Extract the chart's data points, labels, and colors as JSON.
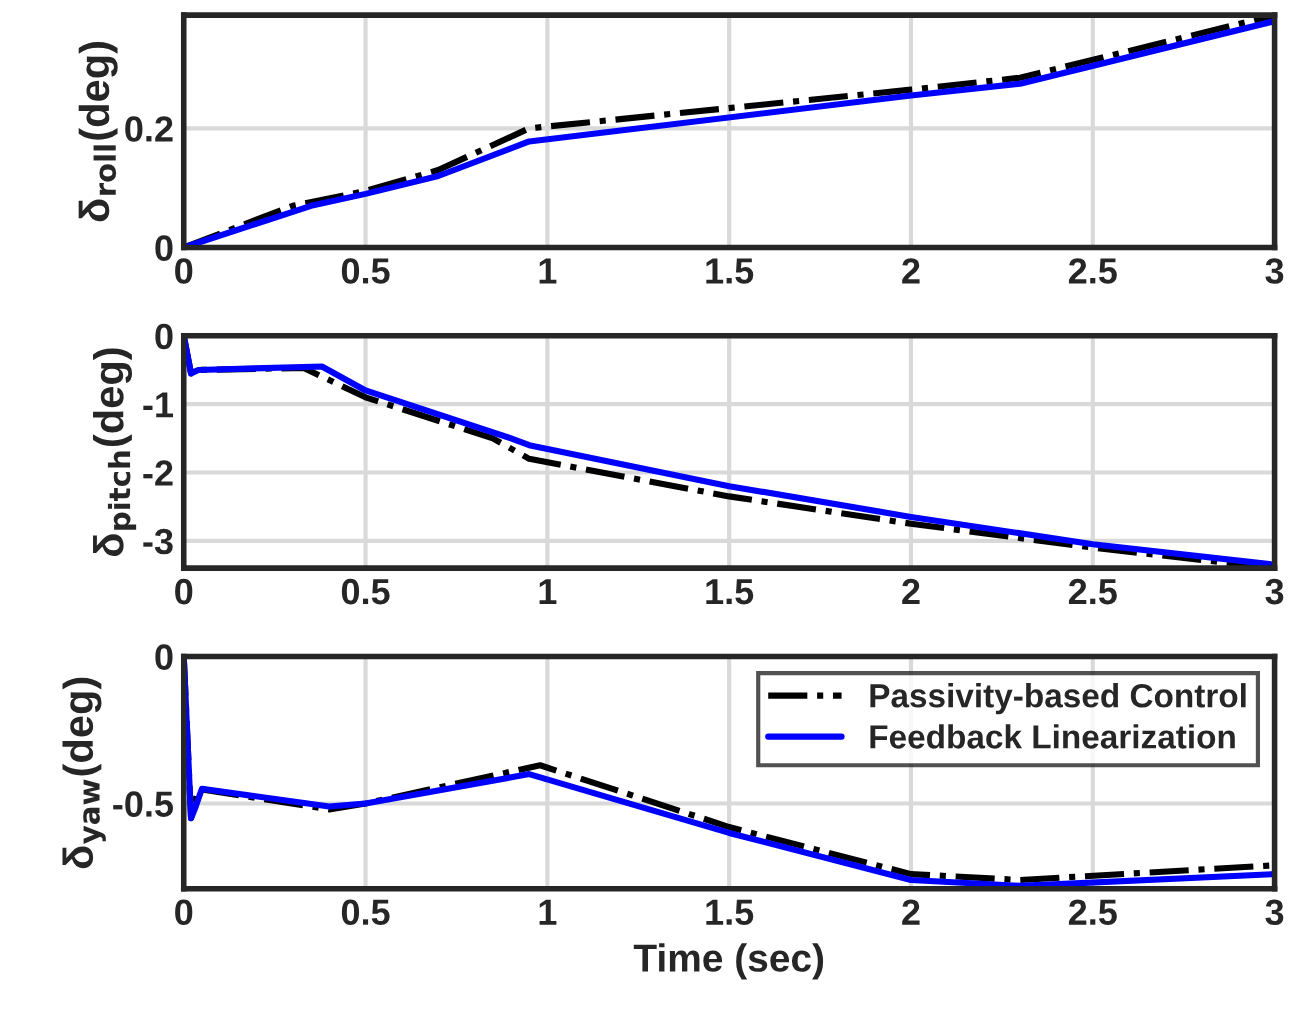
{
  "chart_data": [
    {
      "type": "line",
      "ylabel": "δ$_{roll}$(deg)",
      "xlim": [
        0,
        3
      ],
      "xticks": [
        0,
        0.5,
        1,
        1.5,
        2,
        2.5,
        3
      ],
      "ylim": [
        0,
        0.39
      ],
      "yticks": [
        0,
        0.2
      ],
      "grid": true,
      "legend": false,
      "series": [
        {
          "color": "#000000",
          "line_style": "dashdot",
          "x": [
            0,
            0.3,
            0.5,
            0.7,
            0.95,
            2,
            2.3,
            3
          ],
          "values": [
            0,
            0.07,
            0.095,
            0.13,
            0.2,
            0.265,
            0.285,
            0.39
          ]
        },
        {
          "color": "#0000ff",
          "line_style": "solid",
          "x": [
            0,
            0.35,
            0.5,
            0.7,
            0.95,
            2,
            2.3,
            3
          ],
          "values": [
            0,
            0.07,
            0.09,
            0.12,
            0.178,
            0.255,
            0.275,
            0.38
          ]
        }
      ]
    },
    {
      "type": "line",
      "ylabel": "δ$_{pitch}$(deg)",
      "xlim": [
        0,
        3
      ],
      "xticks": [
        0,
        0.5,
        1,
        1.5,
        2,
        2.5,
        3
      ],
      "ylim": [
        -3.4,
        0
      ],
      "yticks": [
        -3,
        -2,
        -1,
        0
      ],
      "grid": true,
      "legend": false,
      "series": [
        {
          "color": "#000000",
          "line_style": "dashdot",
          "x": [
            0,
            0.02,
            0.04,
            0.33,
            0.5,
            0.85,
            0.95,
            1.5,
            2,
            2.5,
            3
          ],
          "values": [
            0,
            -0.55,
            -0.5,
            -0.47,
            -0.9,
            -1.5,
            -1.8,
            -2.35,
            -2.75,
            -3.1,
            -3.4
          ]
        },
        {
          "color": "#0000ff",
          "line_style": "solid",
          "x": [
            0,
            0.02,
            0.04,
            0.38,
            0.5,
            0.9,
            0.95,
            1.5,
            2,
            2.5,
            3
          ],
          "values": [
            0,
            -0.55,
            -0.5,
            -0.45,
            -0.8,
            -1.5,
            -1.6,
            -2.2,
            -2.65,
            -3.05,
            -3.35
          ]
        }
      ]
    },
    {
      "type": "line",
      "xlabel": "Time (sec)",
      "ylabel": "δ$_{yaw}$(deg)",
      "xlim": [
        0,
        3
      ],
      "xticks": [
        0,
        0.5,
        1,
        1.5,
        2,
        2.5,
        3
      ],
      "ylim": [
        -0.79,
        0
      ],
      "yticks": [
        -0.5,
        0
      ],
      "grid": true,
      "legend": "top right",
      "series": [
        {
          "name": "Passivity-based Control",
          "color": "#000000",
          "line_style": "dashdot",
          "x": [
            0,
            0.02,
            0.04,
            0.4,
            0.5,
            0.98,
            1.5,
            2,
            2.3,
            3
          ],
          "values": [
            0,
            -0.55,
            -0.45,
            -0.52,
            -0.5,
            -0.37,
            -0.58,
            -0.74,
            -0.76,
            -0.71
          ]
        },
        {
          "name": "Feedback Linearization",
          "color": "#0000ff",
          "line_style": "solid",
          "x": [
            0,
            0.02,
            0.03,
            0.05,
            0.4,
            0.5,
            0.95,
            1.5,
            2,
            2.3,
            3
          ],
          "values": [
            0,
            -0.55,
            -0.52,
            -0.45,
            -0.51,
            -0.5,
            -0.4,
            -0.6,
            -0.76,
            -0.78,
            -0.74
          ]
        }
      ]
    }
  ]
}
